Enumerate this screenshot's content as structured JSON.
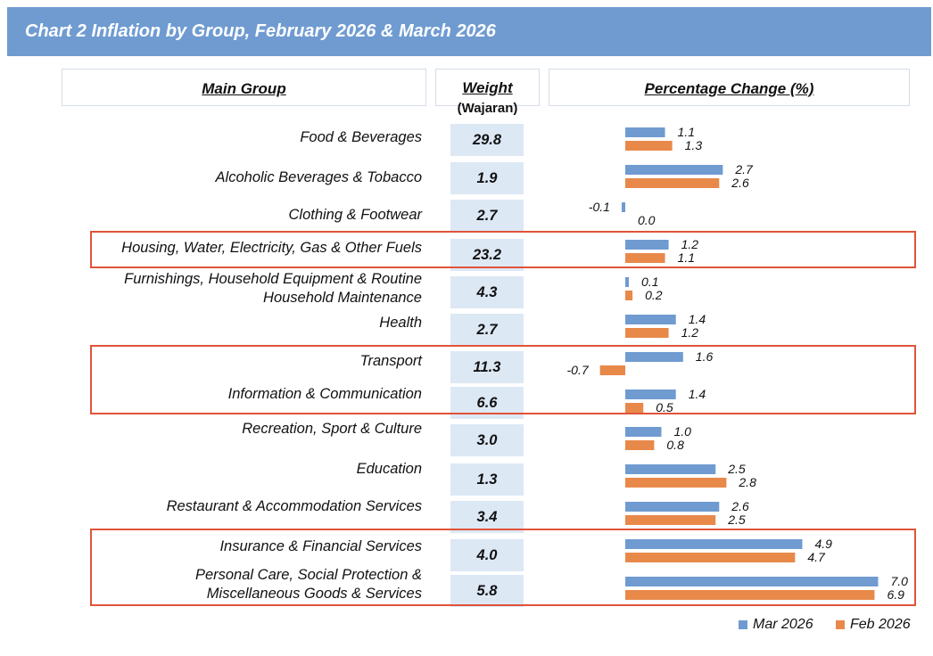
{
  "title": "Chart 2  Inflation by Group, February 2026 & March 2026",
  "headers": {
    "group": "Main Group",
    "weight": "Weight",
    "weight_sub": "(Wajaran)",
    "change": "Percentage Change (%)"
  },
  "colors": {
    "mar": "#6f9bd1",
    "feb": "#e8894a",
    "highlight": "#e0533a",
    "title_bg": "#6f9bd1"
  },
  "chart_data": {
    "type": "bar",
    "orientation": "horizontal",
    "title": "Inflation by Group, February 2026 & March 2026",
    "xlabel": "Percentage Change (%)",
    "categories": [
      "Food & Beverages",
      "Alcoholic Beverages & Tobacco",
      "Clothing & Footwear",
      "Housing, Water, Electricity, Gas & Other Fuels",
      "Furnishings, Household Equipment & Routine Household Maintenance",
      "Health",
      "Transport",
      "Information & Communication",
      "Recreation, Sport & Culture",
      "Education",
      "Restaurant & Accommodation Services",
      "Insurance & Financial Services",
      "Personal Care, Social Protection & Miscellaneous Goods & Services"
    ],
    "category_lines": [
      [
        "Food & Beverages"
      ],
      [
        "Alcoholic Beverages & Tobacco"
      ],
      [
        "Clothing & Footwear"
      ],
      [
        "Housing, Water, Electricity, Gas & Other Fuels"
      ],
      [
        "Furnishings, Household Equipment & Routine",
        "Household Maintenance"
      ],
      [
        "Health"
      ],
      [
        "Transport"
      ],
      [
        "Information & Communication"
      ],
      [
        "Recreation, Sport & Culture"
      ],
      [
        "Education"
      ],
      [
        "Restaurant & Accommodation Services"
      ],
      [
        "Insurance & Financial Services"
      ],
      [
        "Personal Care, Social Protection &",
        "Miscellaneous Goods & Services"
      ]
    ],
    "weights": [
      "29.8",
      "1.9",
      "2.7",
      "23.2",
      "4.3",
      "2.7",
      "11.3",
      "6.6",
      "3.0",
      "1.3",
      "3.4",
      "4.0",
      "5.8"
    ],
    "series": [
      {
        "name": "Mar 2026",
        "values": [
          1.1,
          2.7,
          -0.1,
          1.2,
          0.1,
          1.4,
          1.6,
          1.4,
          1.0,
          2.5,
          2.6,
          4.9,
          7.0
        ],
        "labels": [
          "1.1",
          "2.7",
          "-0.1",
          "1.2",
          "0.1",
          "1.4",
          "1.6",
          "1.4",
          "1.0",
          "2.5",
          "2.6",
          "4.9",
          "7.0"
        ]
      },
      {
        "name": "Feb 2026",
        "values": [
          1.3,
          2.6,
          0.0,
          1.1,
          0.2,
          1.2,
          -0.7,
          0.5,
          0.8,
          2.8,
          2.5,
          4.7,
          6.9
        ],
        "labels": [
          "1.3",
          "2.6",
          "0.0",
          "1.1",
          "0.2",
          "1.2",
          "-0.7",
          "0.5",
          "0.8",
          "2.8",
          "2.5",
          "4.7",
          "6.9"
        ]
      }
    ],
    "highlighted_groups": [
      [
        "Housing, Water, Electricity, Gas & Other Fuels"
      ],
      [
        "Transport",
        "Information & Communication"
      ],
      [
        "Insurance & Financial Services",
        "Personal Care, Social Protection & Miscellaneous Goods & Services"
      ]
    ],
    "legend": [
      "Mar 2026",
      "Feb 2026"
    ],
    "legend_position": "bottom-right"
  }
}
